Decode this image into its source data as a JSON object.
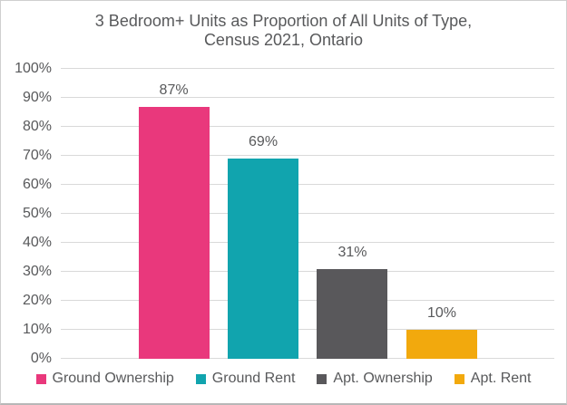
{
  "title": {
    "line1": "3 Bedroom+ Units as Proportion of All Units of Type,",
    "line2": "Census 2021, Ontario"
  },
  "colors": {
    "text": "#58595B",
    "gridline": "#D9D9D9",
    "background": "#FFFFFF",
    "border": "#CFCFCF"
  },
  "chart_data": {
    "type": "bar",
    "title": "3 Bedroom+ Units as Proportion of All Units of Type, Census 2021, Ontario",
    "categories": [
      "Ground Ownership",
      "Ground Rent",
      "Apt. Ownership",
      "Apt. Rent"
    ],
    "values": [
      87,
      69,
      31,
      10
    ],
    "value_labels": [
      "87%",
      "69%",
      "31%",
      "10%"
    ],
    "bar_colors": [
      "#E9387C",
      "#11A4AE",
      "#59585B",
      "#F2A90D"
    ],
    "xlabel": "",
    "ylabel": "",
    "ylim": [
      0,
      100
    ],
    "ytick_interval": 10,
    "ytick_labels": [
      "0%",
      "10%",
      "20%",
      "30%",
      "40%",
      "50%",
      "60%",
      "70%",
      "80%",
      "90%",
      "100%"
    ],
    "grid": true,
    "legend_position": "bottom",
    "legend": [
      {
        "label": "Ground Ownership",
        "color": "#E9387C"
      },
      {
        "label": "Ground Rent",
        "color": "#11A4AE"
      },
      {
        "label": "Apt. Ownership",
        "color": "#59585B"
      },
      {
        "label": "Apt. Rent",
        "color": "#F2A90D"
      }
    ]
  }
}
